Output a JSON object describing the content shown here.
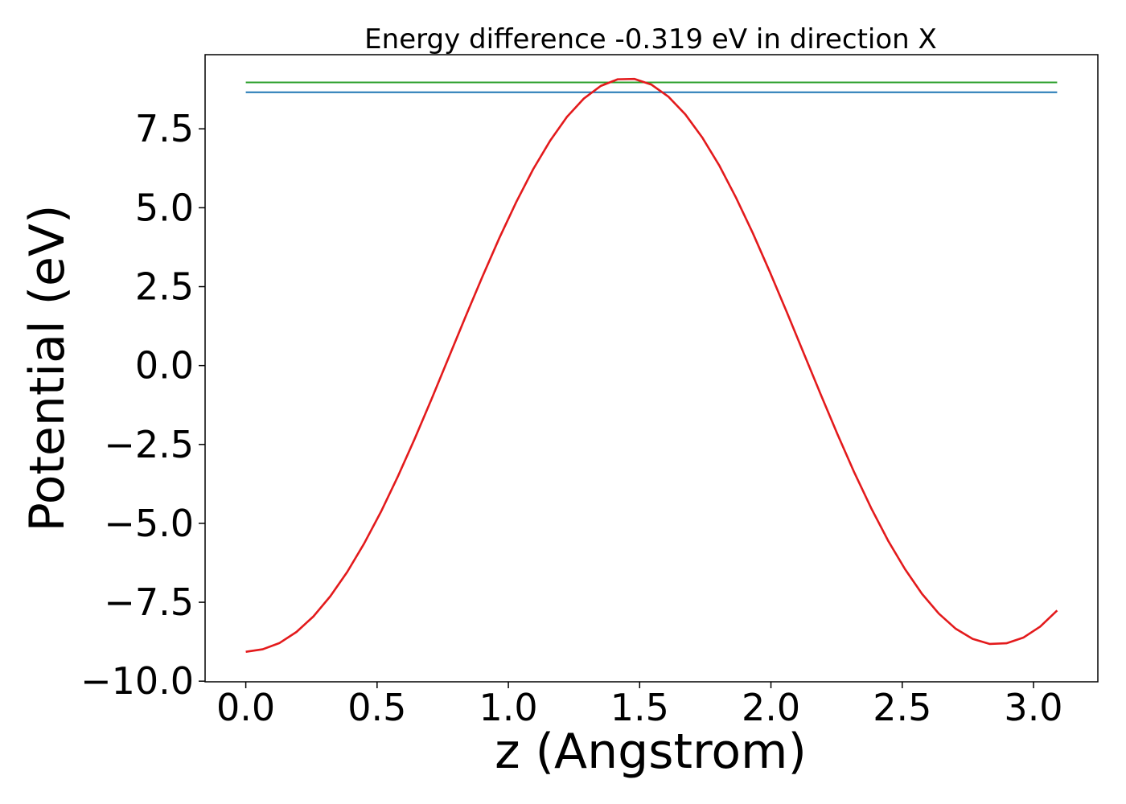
{
  "chart_data": {
    "type": "line",
    "title": "Energy difference -0.319 eV in direction X",
    "xlabel": "z (Angstrom)",
    "ylabel": "Potential (eV)",
    "xlim": [
      -0.155,
      3.245
    ],
    "ylim": [
      -10.02,
      9.85
    ],
    "xticks": [
      0.0,
      0.5,
      1.0,
      1.5,
      2.0,
      2.5,
      3.0
    ],
    "xtick_labels": [
      "0.0",
      "0.5",
      "1.0",
      "1.5",
      "2.0",
      "2.5",
      "3.0"
    ],
    "yticks": [
      -10.0,
      -7.5,
      -5.0,
      -2.5,
      0.0,
      2.5,
      5.0,
      7.5
    ],
    "ytick_labels": [
      "−10.0",
      "−7.5",
      "−5.0",
      "−2.5",
      "0.0",
      "2.5",
      "5.0",
      "7.5"
    ],
    "grid": false,
    "series": [
      {
        "color": "#2ca02c",
        "x": [
          0.0,
          3.09
        ],
        "y": [
          8.97,
          8.97
        ]
      },
      {
        "color": "#1f77b4",
        "x": [
          0.0,
          3.09
        ],
        "y": [
          8.66,
          8.66
        ]
      },
      {
        "color": "#e31a1c",
        "x": [
          0.0,
          0.0644,
          0.1288,
          0.1931,
          0.2575,
          0.3219,
          0.3863,
          0.4506,
          0.515,
          0.5794,
          0.6438,
          0.7081,
          0.7725,
          0.8369,
          0.9013,
          0.9656,
          1.03,
          1.0944,
          1.1588,
          1.2231,
          1.2875,
          1.3519,
          1.4163,
          1.4806,
          1.545,
          1.6094,
          1.6738,
          1.7381,
          1.8025,
          1.8669,
          1.9313,
          1.9956,
          2.06,
          2.1244,
          2.1888,
          2.2531,
          2.3175,
          2.3819,
          2.4463,
          2.5106,
          2.575,
          2.6394,
          2.7038,
          2.7681,
          2.8325,
          2.8969,
          2.9613,
          3.0256,
          3.09
        ],
        "y": [
          -9.07,
          -8.99,
          -8.79,
          -8.44,
          -7.95,
          -7.31,
          -6.54,
          -5.64,
          -4.63,
          -3.51,
          -2.31,
          -1.05,
          0.25,
          1.55,
          2.82,
          4.04,
          5.18,
          6.22,
          7.12,
          7.88,
          8.46,
          8.86,
          9.07,
          9.08,
          8.9,
          8.52,
          7.96,
          7.23,
          6.35,
          5.32,
          4.19,
          2.97,
          1.7,
          0.4,
          -0.9,
          -2.17,
          -3.39,
          -4.52,
          -5.55,
          -6.45,
          -7.23,
          -7.86,
          -8.34,
          -8.66,
          -8.82,
          -8.8,
          -8.62,
          -8.27,
          -7.76
        ]
      }
    ]
  }
}
